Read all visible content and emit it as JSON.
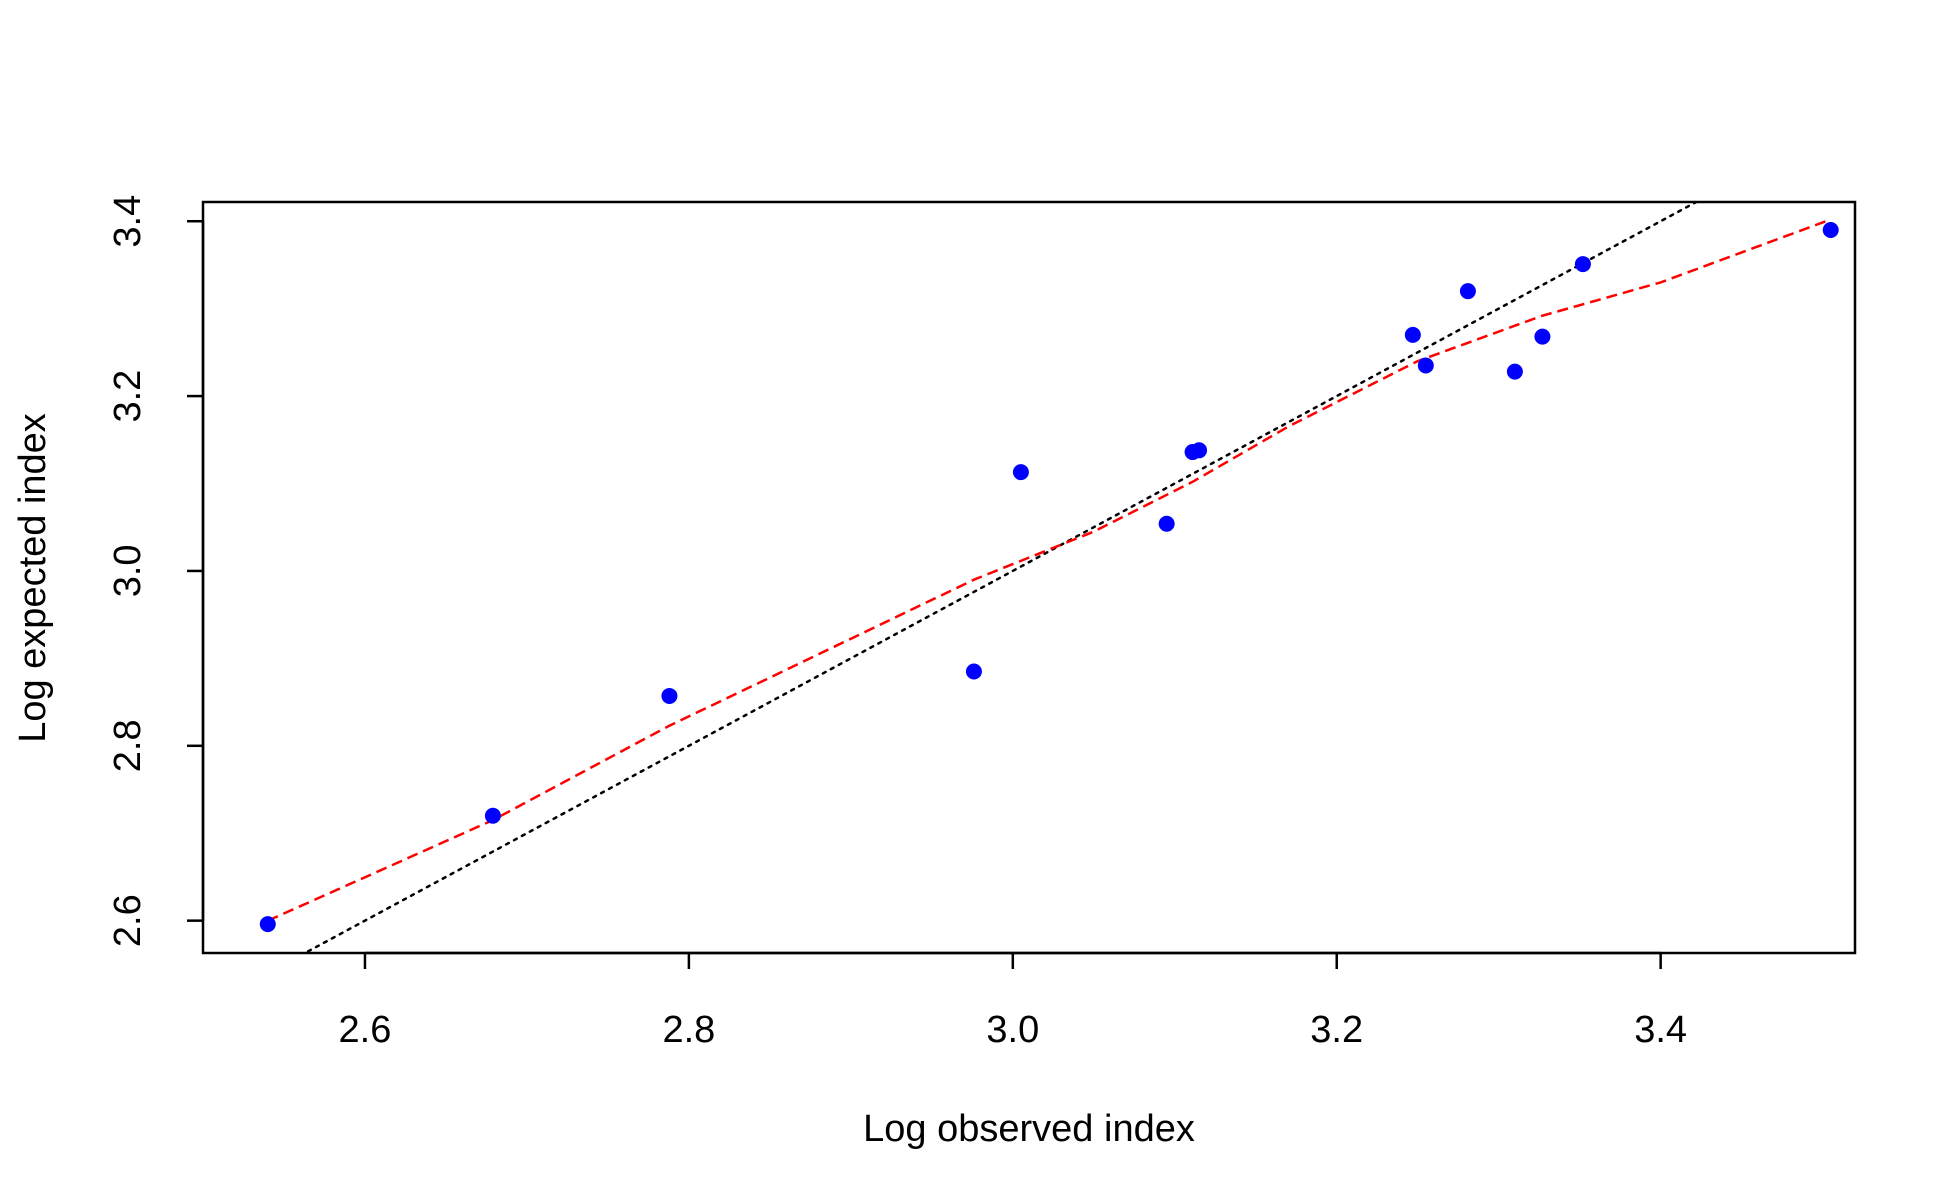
{
  "chart_data": {
    "type": "scatter",
    "title": "",
    "xlabel": "Log observed index",
    "ylabel": "Log expected index",
    "xlim": [
      2.5,
      3.52
    ],
    "ylim": [
      2.563,
      3.422
    ],
    "x_ticks": [
      "2.6",
      "2.8",
      "3.0",
      "3.2",
      "3.4"
    ],
    "y_ticks": [
      "2.6",
      "2.8",
      "3.0",
      "3.2",
      "3.4"
    ],
    "grid": false,
    "colors": {
      "points": "#0000FF",
      "smooth_line": "#FF0000",
      "identity_line": "#000000"
    },
    "points": [
      {
        "x": 2.54,
        "y": 2.596
      },
      {
        "x": 2.679,
        "y": 2.72
      },
      {
        "x": 2.788,
        "y": 2.857
      },
      {
        "x": 2.976,
        "y": 2.885
      },
      {
        "x": 3.005,
        "y": 3.113
      },
      {
        "x": 3.095,
        "y": 3.054
      },
      {
        "x": 3.111,
        "y": 3.136
      },
      {
        "x": 3.115,
        "y": 3.138
      },
      {
        "x": 3.247,
        "y": 3.27
      },
      {
        "x": 3.255,
        "y": 3.235
      },
      {
        "x": 3.281,
        "y": 3.32
      },
      {
        "x": 3.31,
        "y": 3.228
      },
      {
        "x": 3.327,
        "y": 3.268
      },
      {
        "x": 3.352,
        "y": 3.351
      },
      {
        "x": 3.505,
        "y": 3.39
      }
    ],
    "smooth_line": [
      {
        "x": 2.54,
        "y": 2.6
      },
      {
        "x": 2.679,
        "y": 2.715
      },
      {
        "x": 2.788,
        "y": 2.823
      },
      {
        "x": 2.85,
        "y": 2.878
      },
      {
        "x": 2.976,
        "y": 2.99
      },
      {
        "x": 3.05,
        "y": 3.045
      },
      {
        "x": 3.111,
        "y": 3.102
      },
      {
        "x": 3.17,
        "y": 3.165
      },
      {
        "x": 3.25,
        "y": 3.24
      },
      {
        "x": 3.327,
        "y": 3.292
      },
      {
        "x": 3.4,
        "y": 3.33
      },
      {
        "x": 3.505,
        "y": 3.402
      }
    ],
    "identity_line": [
      {
        "x": 2.56,
        "y": 2.56
      },
      {
        "x": 3.43,
        "y": 3.43
      }
    ]
  }
}
